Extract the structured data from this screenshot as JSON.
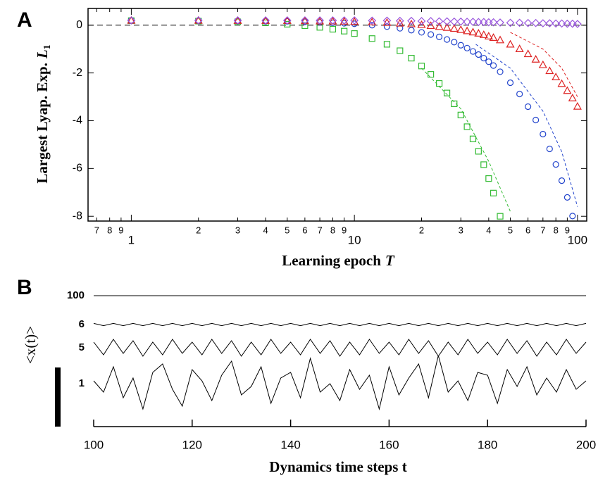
{
  "chart_data": [
    {
      "type": "scatter",
      "panel_label": "A",
      "x_label": "Learning epoch",
      "x_label_symbol": "T",
      "y_label": "Largest Lyap. Exp.",
      "y_label_symbol": "L",
      "y_label_subscript": "1",
      "x_log": true,
      "xlim": [
        0.64,
        110
      ],
      "ylim": [
        -8.2,
        0.7
      ],
      "xticks": [
        {
          "value": 0.7,
          "label": "7"
        },
        {
          "value": 0.8,
          "label": "8"
        },
        {
          "value": 0.9,
          "label": "9"
        },
        1,
        {
          "value": 2,
          "label": "2"
        },
        {
          "value": 3,
          "label": "3"
        },
        {
          "value": 4,
          "label": "4"
        },
        {
          "value": 5,
          "label": "5"
        },
        {
          "value": 6,
          "label": "6"
        },
        {
          "value": 7,
          "label": "7"
        },
        {
          "value": 8,
          "label": "8"
        },
        {
          "value": 9,
          "label": "9"
        },
        10,
        {
          "value": 20,
          "label": "2"
        },
        {
          "value": 30,
          "label": "3"
        },
        {
          "value": 40,
          "label": "4"
        },
        {
          "value": 50,
          "label": "5"
        },
        {
          "value": 60,
          "label": "6"
        },
        {
          "value": 70,
          "label": "7"
        },
        {
          "value": 80,
          "label": "8"
        },
        {
          "value": 90,
          "label": "9"
        },
        100
      ],
      "yticks": [
        0,
        -2,
        -4,
        -6,
        -8
      ],
      "reference_line": 0,
      "series": [
        {
          "color": "#33bb33",
          "marker": "square",
          "x": [
            1,
            2,
            3,
            4,
            5,
            6,
            7,
            8,
            9,
            10,
            12,
            14,
            16,
            18,
            20,
            22,
            24,
            26,
            28,
            30,
            32,
            34,
            36,
            38,
            40,
            42,
            45
          ],
          "values": [
            0.19,
            0.17,
            0.14,
            0.1,
            0.04,
            -0.02,
            -0.09,
            -0.17,
            -0.25,
            -0.35,
            -0.56,
            -0.8,
            -1.07,
            -1.38,
            -1.71,
            -2.06,
            -2.44,
            -2.84,
            -3.29,
            -3.76,
            -4.25,
            -4.76,
            -5.28,
            -5.84,
            -6.42,
            -7.03,
            -8.0
          ]
        },
        {
          "color": "#2244cc",
          "marker": "circle",
          "x": [
            1,
            2,
            3,
            4,
            5,
            6,
            7,
            8,
            9,
            10,
            12,
            14,
            16,
            18,
            20,
            22,
            24,
            26,
            28,
            30,
            32,
            34,
            36,
            38,
            40,
            42,
            45,
            50,
            55,
            60,
            65,
            70,
            75,
            80,
            85,
            90,
            95
          ],
          "values": [
            0.2,
            0.19,
            0.18,
            0.17,
            0.16,
            0.14,
            0.12,
            0.1,
            0.08,
            0.06,
            0.0,
            -0.06,
            -0.13,
            -0.21,
            -0.3,
            -0.39,
            -0.49,
            -0.6,
            -0.71,
            -0.84,
            -0.96,
            -1.1,
            -1.23,
            -1.38,
            -1.53,
            -1.69,
            -1.95,
            -2.41,
            -2.88,
            -3.41,
            -3.97,
            -4.56,
            -5.18,
            -5.83,
            -6.51,
            -7.21,
            -7.99
          ]
        },
        {
          "color": "#dd2222",
          "marker": "triangle",
          "x": [
            1,
            2,
            3,
            4,
            5,
            6,
            7,
            8,
            9,
            10,
            12,
            14,
            16,
            18,
            20,
            22,
            24,
            26,
            28,
            30,
            32,
            34,
            36,
            38,
            40,
            42,
            45,
            50,
            55,
            60,
            65,
            70,
            75,
            80,
            85,
            90,
            95,
            100
          ],
          "values": [
            0.2,
            0.2,
            0.19,
            0.19,
            0.19,
            0.18,
            0.17,
            0.17,
            0.16,
            0.15,
            0.13,
            0.11,
            0.08,
            0.05,
            0.02,
            -0.02,
            -0.06,
            -0.1,
            -0.14,
            -0.19,
            -0.24,
            -0.29,
            -0.34,
            -0.4,
            -0.46,
            -0.52,
            -0.62,
            -0.8,
            -0.99,
            -1.2,
            -1.43,
            -1.66,
            -1.91,
            -2.17,
            -2.45,
            -2.74,
            -3.05,
            -3.4
          ]
        },
        {
          "color": "#9955dd",
          "marker": "diamond",
          "x": [
            1,
            2,
            3,
            4,
            5,
            6,
            7,
            8,
            9,
            10,
            12,
            14,
            16,
            18,
            20,
            22,
            24,
            26,
            28,
            30,
            32,
            34,
            36,
            38,
            40,
            42,
            45,
            50,
            55,
            60,
            65,
            70,
            75,
            80,
            85,
            90,
            95,
            100
          ],
          "values": [
            0.2,
            0.2,
            0.2,
            0.2,
            0.2,
            0.2,
            0.2,
            0.2,
            0.2,
            0.2,
            0.19,
            0.19,
            0.18,
            0.18,
            0.17,
            0.17,
            0.16,
            0.16,
            0.15,
            0.15,
            0.14,
            0.14,
            0.13,
            0.13,
            0.12,
            0.12,
            0.11,
            0.1,
            0.1,
            0.09,
            0.09,
            0.08,
            0.08,
            0.07,
            0.07,
            0.06,
            0.06,
            0.05
          ]
        }
      ],
      "fit_lines": [
        {
          "color": "#33bb33",
          "x": [
            20,
            30,
            40,
            50
          ],
          "values": [
            -1.8,
            -3.5,
            -5.7,
            -7.8
          ]
        },
        {
          "color": "#2244cc",
          "x": [
            35,
            50,
            70,
            85,
            100
          ],
          "values": [
            -0.8,
            -1.8,
            -3.6,
            -5.3,
            -7.6
          ]
        },
        {
          "color": "#dd2222",
          "x": [
            50,
            70,
            85,
            100
          ],
          "values": [
            -0.3,
            -1.0,
            -1.8,
            -3.0
          ]
        }
      ]
    },
    {
      "type": "line",
      "panel_label": "B",
      "x_label": "Dynamics time steps t",
      "y_label": "<x(t)>",
      "xlim": [
        100,
        200
      ],
      "xticks": [
        100,
        120,
        140,
        160,
        180,
        200
      ],
      "x": [
        100,
        102,
        104,
        106,
        108,
        110,
        112,
        114,
        116,
        118,
        120,
        122,
        124,
        126,
        128,
        130,
        132,
        134,
        136,
        138,
        140,
        142,
        144,
        146,
        148,
        150,
        152,
        154,
        156,
        158,
        160,
        162,
        164,
        166,
        168,
        170,
        172,
        174,
        176,
        178,
        180,
        182,
        184,
        186,
        188,
        190,
        192,
        194,
        196,
        198,
        200
      ],
      "series": [
        {
          "name": "100",
          "color": "#000000",
          "values": [
            0,
            0,
            0,
            0,
            0,
            0,
            0,
            0,
            0,
            0,
            0,
            0,
            0,
            0,
            0,
            0,
            0,
            0,
            0,
            0,
            0,
            0,
            0,
            0,
            0,
            0,
            0,
            0,
            0,
            0,
            0,
            0,
            0,
            0,
            0,
            0,
            0,
            0,
            0,
            0,
            0,
            0,
            0,
            0,
            0,
            0,
            0,
            0,
            0,
            0,
            0
          ]
        },
        {
          "name": "6",
          "color": "#000000",
          "values": [
            0.04,
            -0.04,
            0.04,
            -0.04,
            0.04,
            -0.04,
            0.04,
            -0.04,
            0.04,
            -0.04,
            0.04,
            -0.04,
            0.04,
            -0.04,
            0.04,
            -0.04,
            0.04,
            -0.04,
            0.04,
            -0.04,
            0.04,
            -0.04,
            0.04,
            -0.04,
            0.04,
            -0.04,
            0.04,
            -0.04,
            0.04,
            -0.04,
            0.04,
            -0.04,
            0.04,
            -0.04,
            0.04,
            -0.04,
            0.04,
            -0.04,
            0.04,
            -0.04,
            0.04,
            -0.04,
            0.04,
            -0.04,
            0.04,
            -0.04,
            0.04,
            -0.04,
            0.04,
            -0.04,
            0.04
          ]
        },
        {
          "name": "5",
          "color": "#000000",
          "values": [
            0.2,
            -0.25,
            0.3,
            -0.2,
            0.25,
            -0.3,
            0.2,
            -0.25,
            0.3,
            -0.2,
            0.2,
            -0.25,
            0.3,
            -0.2,
            0.25,
            -0.3,
            0.2,
            -0.25,
            0.3,
            -0.2,
            0.2,
            -0.25,
            0.3,
            -0.2,
            0.25,
            -0.3,
            0.2,
            -0.25,
            0.3,
            -0.2,
            0.2,
            -0.25,
            0.3,
            -0.2,
            0.25,
            -0.3,
            0.2,
            -0.25,
            0.3,
            -0.2,
            0.2,
            -0.25,
            0.3,
            -0.2,
            0.25,
            -0.3,
            0.2,
            -0.25,
            0.3,
            -0.2,
            0.2
          ]
        },
        {
          "name": "1",
          "color": "#000000",
          "values": [
            0.1,
            -0.3,
            0.6,
            -0.5,
            0.2,
            -0.9,
            0.4,
            0.7,
            -0.2,
            -0.8,
            0.5,
            0.1,
            -0.6,
            0.3,
            0.8,
            -0.4,
            -0.1,
            0.6,
            -0.7,
            0.2,
            0.4,
            -0.5,
            0.9,
            -0.3,
            0.0,
            -0.6,
            0.5,
            -0.2,
            0.3,
            -0.9,
            0.6,
            -0.4,
            0.2,
            0.7,
            -0.5,
            1.0,
            -0.3,
            0.1,
            -0.6,
            0.4,
            0.3,
            -0.7,
            0.5,
            -0.1,
            0.6,
            -0.4,
            0.2,
            -0.3,
            0.5,
            -0.2,
            0.1
          ]
        }
      ]
    }
  ]
}
